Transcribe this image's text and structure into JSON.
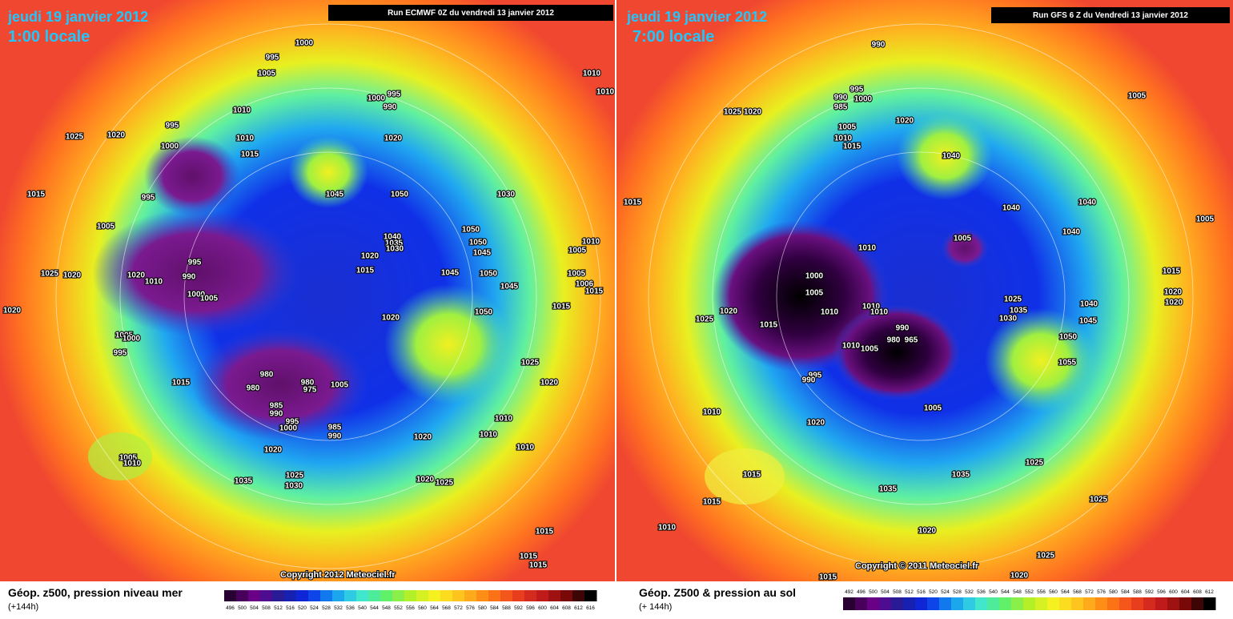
{
  "panels": [
    {
      "header": {
        "date": "jeudi 19 janvier 2012",
        "time": "1:00 locale",
        "run": "Run ECMWF 0Z du vendredi 13 janvier 2012"
      },
      "isobar_labels": [
        "1000",
        "995",
        "1005",
        "1010",
        "995",
        "1000",
        "1010",
        "1015",
        "1025",
        "1020",
        "1015",
        "995",
        "1005",
        "1025",
        "1020",
        "1020",
        "1010",
        "995",
        "990",
        "1000",
        "1005",
        "1020",
        "1005",
        "1000",
        "995",
        "1015",
        "980",
        "980",
        "980",
        "975",
        "1005",
        "985",
        "990",
        "995",
        "1000",
        "985",
        "990",
        "1020",
        "1025",
        "1030",
        "1035",
        "1005",
        "1010",
        "1000",
        "995",
        "990",
        "1020",
        "1045",
        "1050",
        "1030",
        "1040",
        "1035",
        "1030",
        "1020",
        "1015",
        "1020",
        "1045",
        "1050",
        "1050",
        "1045",
        "1050",
        "1045",
        "1050",
        "1010",
        "1010",
        "1005",
        "1010",
        "1005",
        "1006",
        "1015",
        "1015",
        "1025",
        "1020",
        "1010",
        "1010",
        "1010",
        "1020",
        "1020",
        "1025",
        "1015",
        "1015",
        "1015"
      ],
      "footer": {
        "title": "Géop. z500, pression niveau mer",
        "lead": "(+144h)",
        "copyright": "Copyright 2012 Meteociel.fr"
      },
      "colorbar": [
        496,
        500,
        504,
        508,
        512,
        516,
        520,
        524,
        528,
        532,
        536,
        540,
        544,
        548,
        552,
        556,
        560,
        564,
        568,
        572,
        576,
        580,
        584,
        588,
        592,
        596,
        600,
        604,
        608,
        612,
        616
      ]
    },
    {
      "header": {
        "date": "jeudi 19 janvier 2012",
        "time": "7:00 locale",
        "run": "Run GFS 6 Z du Vendredi 13 janvier 2012"
      },
      "isobar_labels": [
        "990",
        "995",
        "1000",
        "990",
        "985",
        "1005",
        "1010",
        "1015",
        "1020",
        "1025",
        "1020",
        "1040",
        "1005",
        "1005",
        "1040",
        "1040",
        "1040",
        "1005",
        "1015",
        "1010",
        "1000",
        "1005",
        "1010",
        "1015",
        "1020",
        "1025",
        "1010",
        "1010",
        "990",
        "980",
        "965",
        "1010",
        "1005",
        "995",
        "990",
        "1005",
        "1010",
        "1020",
        "1025",
        "1035",
        "1030",
        "1040",
        "1045",
        "1050",
        "1055",
        "1015",
        "1020",
        "1020",
        "1025",
        "1025",
        "1015",
        "1035",
        "1015",
        "1010",
        "1020",
        "1025",
        "1020",
        "1015",
        "1035"
      ],
      "footer": {
        "title": "Géop. Z500 & pression au sol",
        "lead": "(+ 144h)",
        "copyright": "Copyright © 2011 Meteociel.fr"
      },
      "colorbar": [
        492,
        496,
        500,
        504,
        508,
        512,
        516,
        520,
        524,
        528,
        532,
        536,
        540,
        544,
        548,
        552,
        556,
        560,
        564,
        568,
        572,
        576,
        580,
        584,
        588,
        592,
        596,
        600,
        604,
        608,
        612
      ]
    }
  ]
}
